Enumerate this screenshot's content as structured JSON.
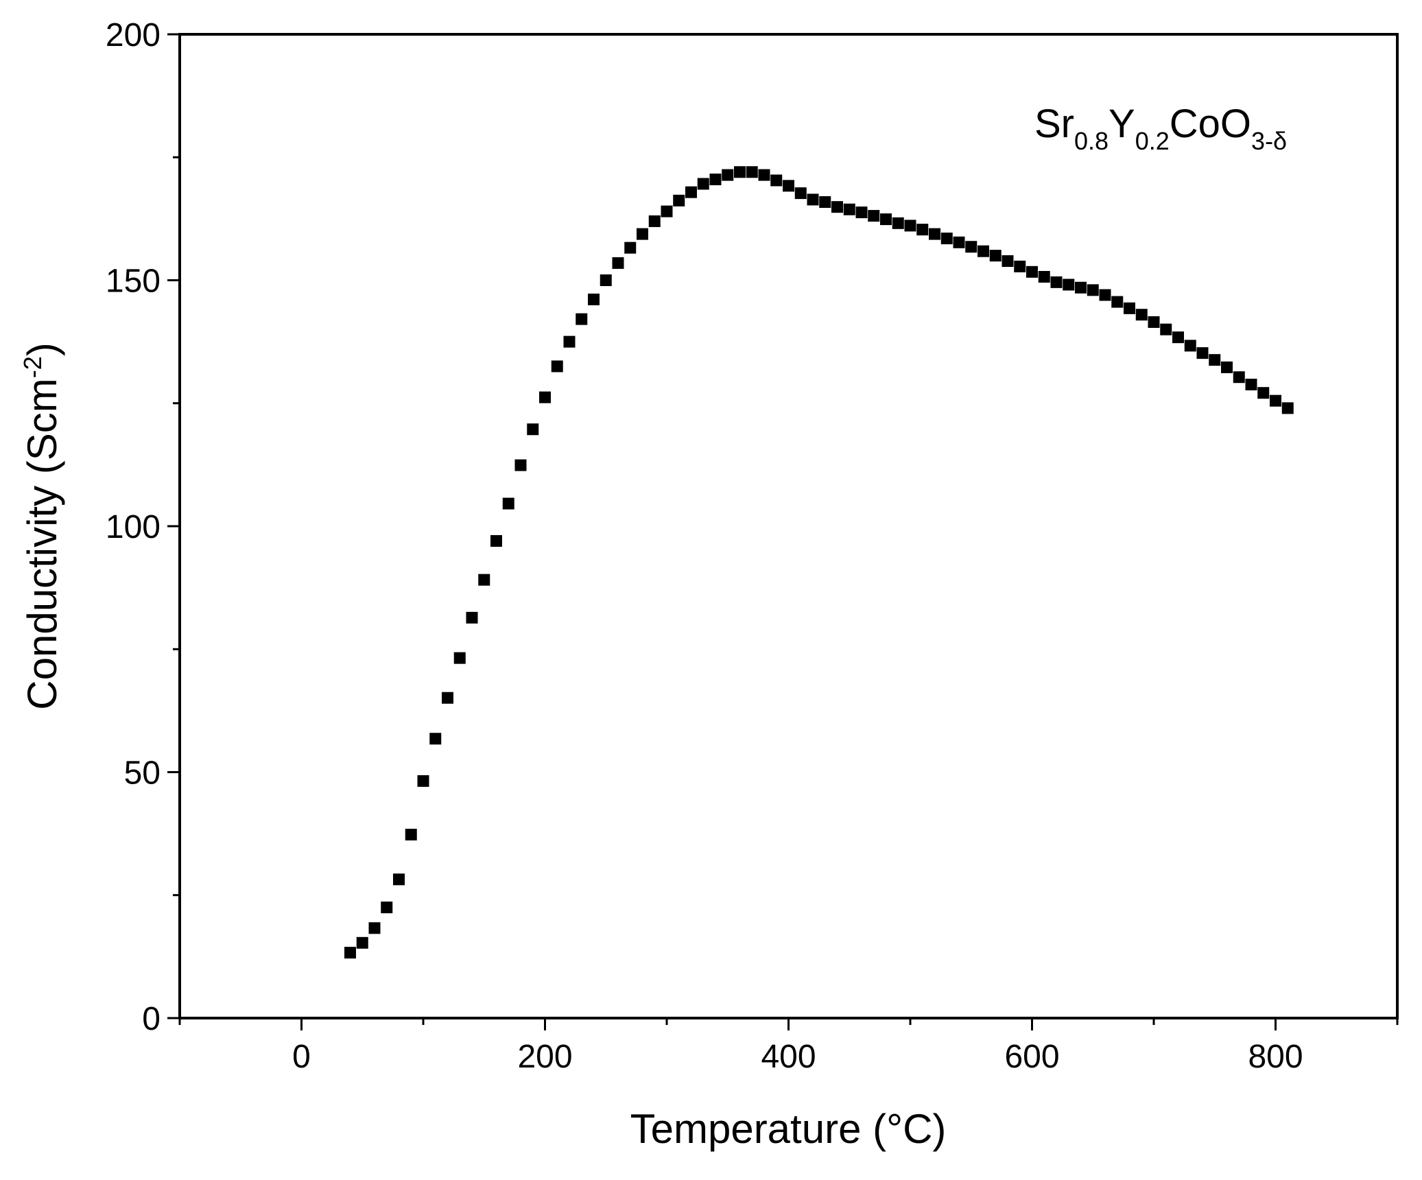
{
  "chart_data": {
    "type": "scatter",
    "xlabel": "Temperature (°C)",
    "ylabel": [
      {
        "text": "Conductivity (Scm"
      },
      {
        "text": "-2",
        "sup": true
      },
      {
        "text": ")"
      }
    ],
    "annotation": [
      {
        "text": "Sr"
      },
      {
        "text": "0.8",
        "sub": true
      },
      {
        "text": "Y"
      },
      {
        "text": "0.2",
        "sub": true
      },
      {
        "text": "CoO"
      },
      {
        "text": "3-δ",
        "sub": true
      }
    ],
    "xlim": [
      -100,
      900
    ],
    "ylim": [
      0,
      200
    ],
    "xticks": [
      0,
      200,
      400,
      600,
      800
    ],
    "xminorticks": [
      -100,
      100,
      300,
      500,
      700,
      900
    ],
    "yticks": [
      0,
      50,
      100,
      150,
      200
    ],
    "yminorticks": [
      25,
      75,
      125,
      175
    ],
    "grid": false,
    "color": "#000000",
    "marker": "square",
    "x": [
      40,
      50,
      60,
      70,
      80,
      90,
      100,
      110,
      120,
      130,
      140,
      150,
      160,
      170,
      180,
      190,
      200,
      210,
      220,
      230,
      240,
      250,
      260,
      270,
      280,
      290,
      300,
      310,
      320,
      330,
      340,
      350,
      360,
      370,
      380,
      390,
      400,
      410,
      420,
      430,
      440,
      450,
      460,
      470,
      480,
      490,
      500,
      510,
      520,
      530,
      540,
      550,
      560,
      570,
      580,
      590,
      600,
      610,
      620,
      630,
      640,
      650,
      660,
      670,
      680,
      690,
      700,
      710,
      720,
      730,
      740,
      750,
      760,
      770,
      780,
      790,
      800,
      810
    ],
    "y": [
      13.3,
      15.3,
      18.3,
      22.5,
      28.2,
      37.3,
      48.2,
      56.8,
      65.1,
      73.2,
      81.4,
      89.1,
      97.0,
      104.6,
      112.4,
      119.7,
      126.2,
      132.5,
      137.5,
      142.1,
      146.1,
      150.0,
      153.5,
      156.6,
      159.4,
      162.0,
      164.0,
      166.2,
      167.9,
      169.6,
      170.5,
      171.4,
      172.0,
      172.0,
      171.4,
      170.3,
      169.2,
      167.7,
      166.4,
      165.9,
      164.9,
      164.4,
      163.8,
      163.1,
      162.4,
      161.6,
      161.1,
      160.3,
      159.4,
      158.5,
      157.7,
      156.8,
      155.9,
      155.0,
      153.9,
      152.8,
      151.7,
      150.7,
      149.6,
      149.1,
      148.5,
      148.0,
      147.0,
      145.6,
      144.3,
      143.0,
      141.5,
      140.0,
      138.4,
      136.7,
      135.2,
      133.8,
      132.3,
      130.3,
      128.8,
      127.1,
      125.5,
      124.0
    ]
  }
}
